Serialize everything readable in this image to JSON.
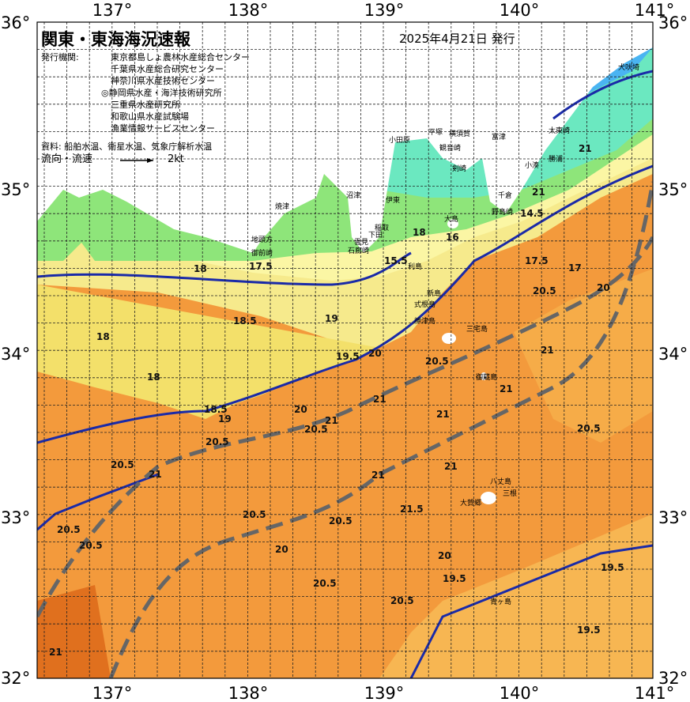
{
  "header": {
    "title": "関東・東海海況速報",
    "date": "2025年4月21日 発行"
  },
  "info": {
    "agency_label": "発行機関:",
    "agencies": [
      "東京都島しょ農林水産総合センター",
      "千葉県水産総合研究センター",
      "神奈川県水産技術センター",
      "◎静岡県水産・海洋技術研究所",
      "三重県水産研究所",
      "和歌山県水産試験場",
      "漁業情報サービスセンター"
    ],
    "source": "資料: 船舶水温、衛星水温、気象庁解析水温",
    "flow_label": "流向・流速",
    "flow_scale": "2kt"
  },
  "map": {
    "lon_labels": [
      "137°",
      "138°",
      "139°",
      "140°",
      "141°"
    ],
    "lat_labels": [
      "36°",
      "35°",
      "34°",
      "33°",
      "32°"
    ],
    "places": [
      "犬吠埼",
      "太東崎",
      "勝浦",
      "小湊",
      "富津",
      "平塚",
      "横須賀",
      "観音崎",
      "小田原",
      "剣崎",
      "千倉",
      "野島崎",
      "伊東",
      "稲取",
      "下田",
      "雲見",
      "石廊崎",
      "大島",
      "沼津",
      "焼津",
      "地頭方",
      "御前崎",
      "利島",
      "新島",
      "式根島",
      "神津島",
      "三宅島",
      "御蔵島",
      "八丈島",
      "三根",
      "大賀郷",
      "青ヶ島"
    ],
    "contour_labels": [
      "18",
      "17.5",
      "18.5",
      "19",
      "18",
      "18",
      "18.5",
      "19",
      "20.5",
      "20.5",
      "21",
      "20",
      "20.5",
      "21",
      "21",
      "21",
      "21",
      "19.5",
      "20",
      "20.5",
      "21",
      "21",
      "20.5",
      "20.5",
      "20",
      "17",
      "17.5",
      "18",
      "16",
      "15.5",
      "14.5",
      "21",
      "21",
      "21",
      "20.5",
      "20.5",
      "21.5",
      "20.5",
      "20.5",
      "20",
      "20.5",
      "20",
      "19.5",
      "20.5",
      "19.5",
      "19.5",
      "21"
    ]
  }
}
